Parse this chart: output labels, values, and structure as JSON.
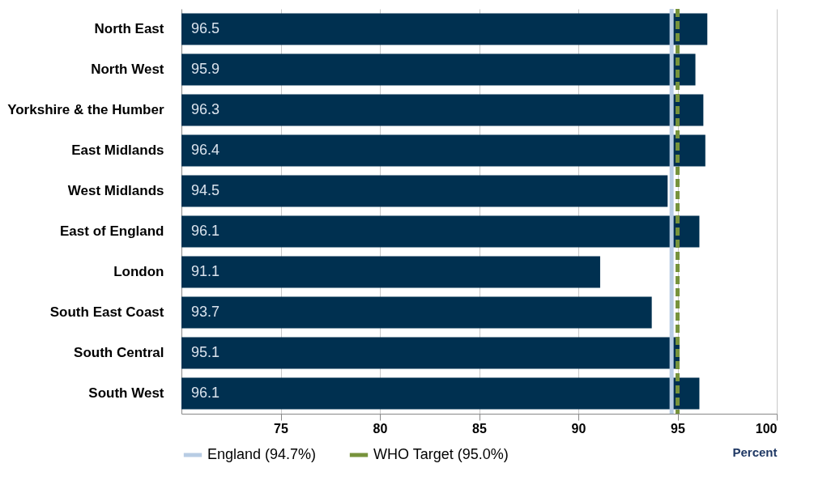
{
  "chart_data": {
    "type": "bar",
    "orientation": "horizontal",
    "xlabel": "Percent",
    "categories": [
      "North East",
      "North West",
      "Yorkshire & the Humber",
      "East Midlands",
      "West Midlands",
      "East of England",
      "London",
      "South East Coast",
      "South Central",
      "South West"
    ],
    "values": [
      96.5,
      95.9,
      96.3,
      96.4,
      94.5,
      96.1,
      91.1,
      93.7,
      95.1,
      96.1
    ],
    "color": "#003050",
    "data_labels": true,
    "xlim": [
      70,
      100
    ],
    "xticks": [
      75,
      80,
      85,
      90,
      95,
      100
    ],
    "grid": "x",
    "legend": "bottom",
    "ref_lines": [
      {
        "axis": "x",
        "value": 94.7,
        "label": "England (94.7%)",
        "color": "#b8cce4",
        "line_style": "solid"
      },
      {
        "axis": "x",
        "value": 95.0,
        "label": "WHO Target (95.0%)",
        "color": "#77933c",
        "line_style": "dashed"
      }
    ]
  }
}
